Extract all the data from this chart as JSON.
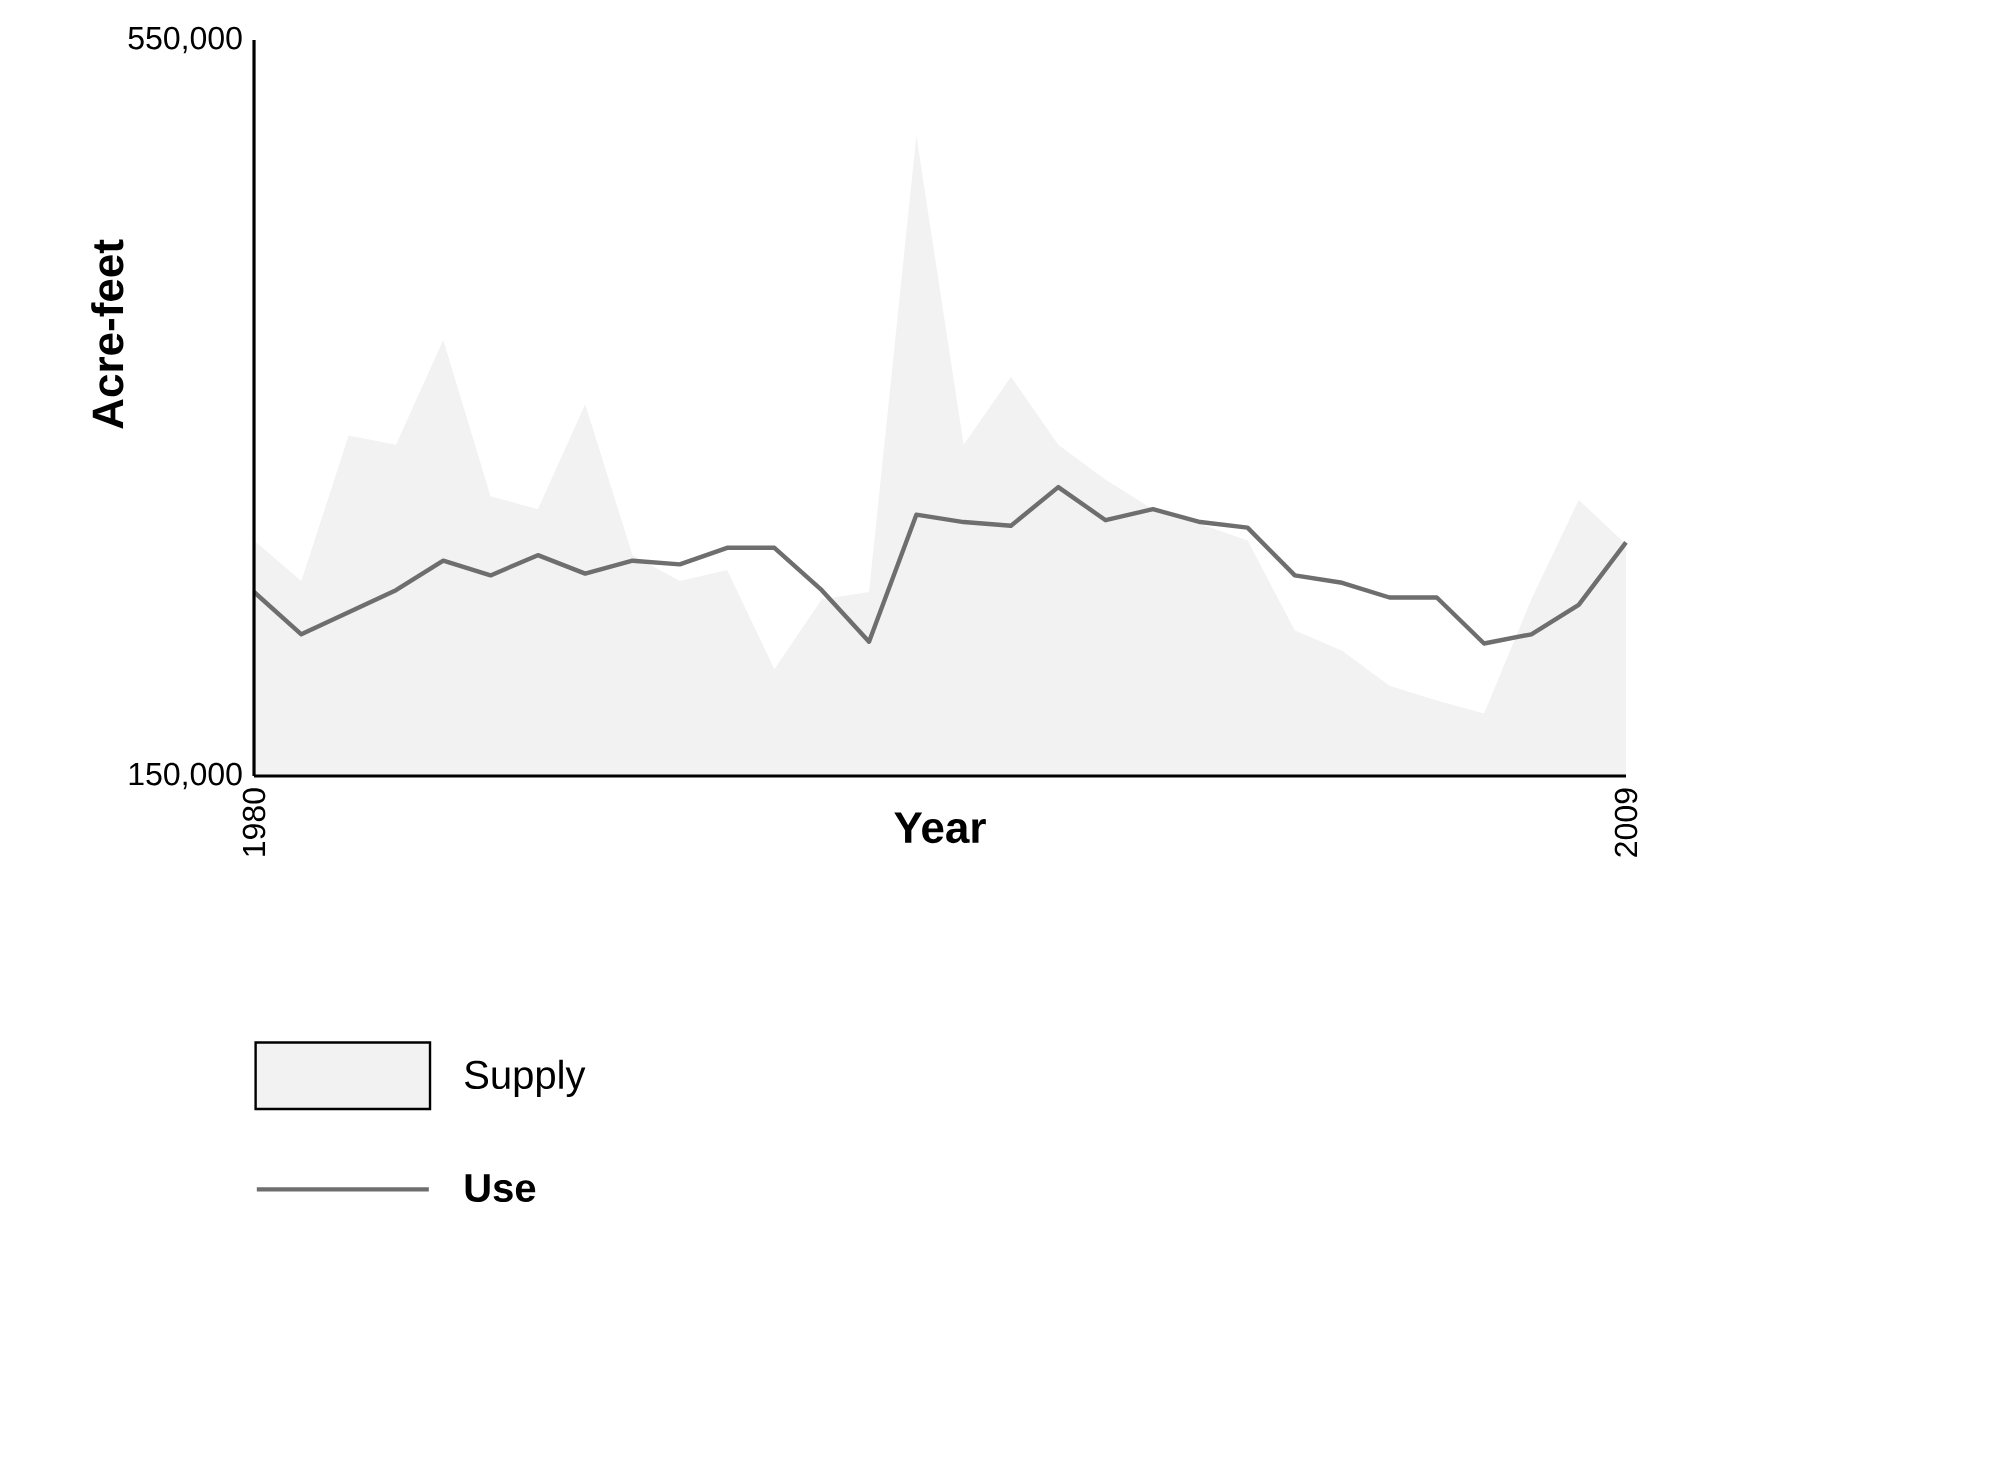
{
  "chart_data": {
    "type": "area",
    "xlabel": "Year",
    "ylabel": "Acre-feet",
    "x": [
      1980,
      1981,
      1982,
      1983,
      1984,
      1985,
      1986,
      1987,
      1988,
      1989,
      1990,
      1991,
      1992,
      1993,
      1994,
      1995,
      1996,
      1997,
      1998,
      1999,
      2000,
      2001,
      2002,
      2003,
      2004,
      2005,
      2006,
      2007,
      2008,
      2009
    ],
    "xlim": [
      1980,
      2009
    ],
    "xticks": [
      1980,
      2009
    ],
    "ylim": [
      150000,
      550000
    ],
    "yticks": [
      {
        "value": 150000,
        "label": "150,000"
      },
      {
        "value": 550000,
        "label": "550,000"
      }
    ],
    "legend": "bottom left",
    "series": [
      {
        "name": "Supply",
        "type": "area",
        "color": "#f2f2f2",
        "values": [
          278000,
          256000,
          335000,
          330000,
          387000,
          302000,
          295000,
          352000,
          270000,
          256000,
          262000,
          208000,
          246000,
          250000,
          498000,
          330000,
          367000,
          330000,
          311000,
          295000,
          287000,
          278000,
          229000,
          218000,
          199000,
          191000,
          184000,
          246000,
          300000,
          276000
        ]
      },
      {
        "name": "Use",
        "type": "line",
        "color": "#6e6e6e",
        "values": [
          250000,
          227000,
          239000,
          251000,
          267000,
          259000,
          270000,
          260000,
          267000,
          265000,
          274000,
          274000,
          251000,
          223000,
          292000,
          288000,
          286000,
          307000,
          289000,
          295000,
          288000,
          285000,
          259000,
          255000,
          247000,
          247000,
          222000,
          227000,
          243000,
          277000
        ]
      }
    ]
  }
}
